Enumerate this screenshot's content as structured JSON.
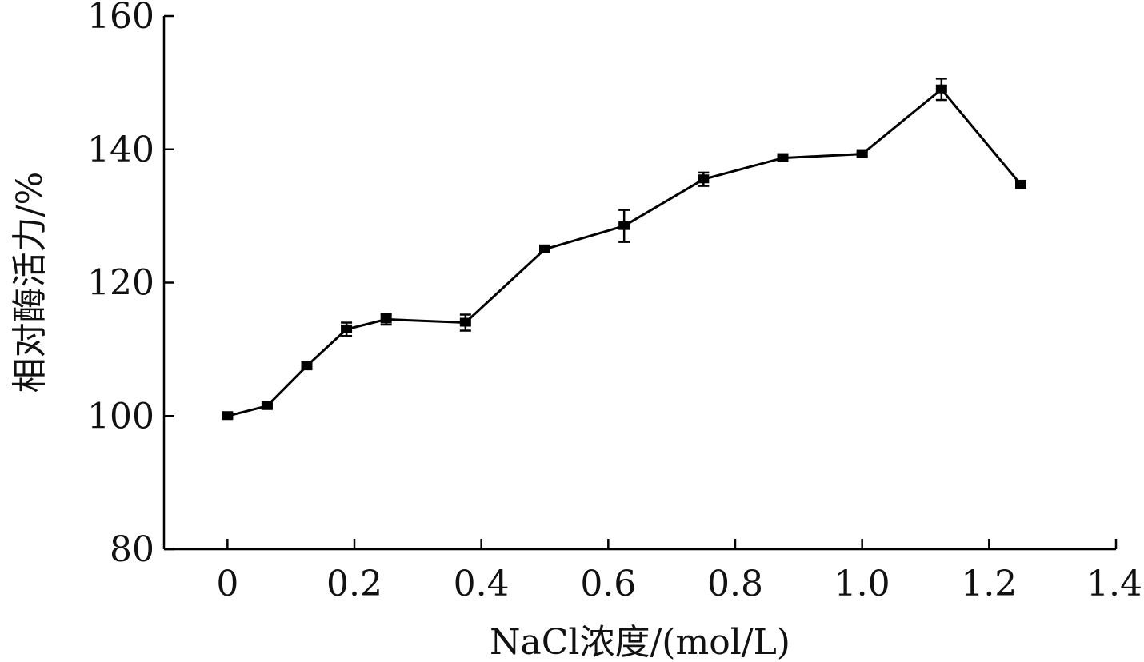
{
  "chart_data": {
    "type": "line",
    "title": "",
    "xlabel": "NaCl浓度/(mol/L)",
    "ylabel": "相对酶活力/%",
    "xlim": [
      -0.1,
      1.4
    ],
    "ylim": [
      80,
      160
    ],
    "x_ticks": [
      0,
      0.2,
      0.4,
      0.6,
      0.8,
      1.0,
      1.2,
      1.4
    ],
    "x_tick_labels": [
      "0",
      "0.2",
      "0.4",
      "0.6",
      "0.8",
      "1.0",
      "1.2",
      "1.4"
    ],
    "y_ticks": [
      80,
      100,
      120,
      140,
      160
    ],
    "y_tick_labels": [
      "80",
      "100",
      "120",
      "140",
      "160"
    ],
    "grid": false,
    "series": [
      {
        "x": [
          0,
          0.0625,
          0.125,
          0.1875,
          0.25,
          0.375,
          0.5,
          0.625,
          0.75,
          0.875,
          1.0,
          1.125,
          1.25
        ],
        "values": [
          100,
          101.5,
          107.5,
          113,
          114.5,
          114,
          125,
          128.5,
          135.5,
          138.7,
          139.3,
          149,
          134.7
        ],
        "errors": [
          0.3,
          0.3,
          0.5,
          1.0,
          0.8,
          1.2,
          0.4,
          2.4,
          1.0,
          0.3,
          0.3,
          1.6,
          0.5
        ]
      }
    ]
  }
}
